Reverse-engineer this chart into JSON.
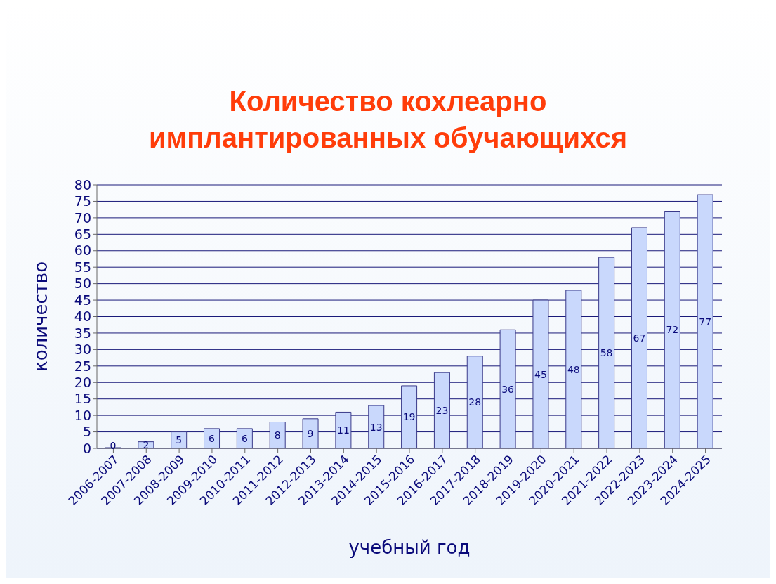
{
  "chart_data": {
    "type": "bar",
    "title": "Количество кохлеарно имплантированных обучающихся",
    "xlabel": "учебный год",
    "ylabel": "количество",
    "categories": [
      "2006-2007",
      "2007-2008",
      "2008-2009",
      "2009-2010",
      "2010-2011",
      "2011-2012",
      "2012-2013",
      "2013-2014",
      "2014-2015",
      "2015-2016",
      "2016-2017",
      "2017-2018",
      "2018-2019",
      "2019-2020",
      "2020-2021",
      "2021-2022",
      "2022-2023",
      "2023-2024",
      "2024-2025"
    ],
    "values": [
      0,
      2,
      5,
      6,
      6,
      8,
      9,
      11,
      13,
      19,
      23,
      28,
      36,
      45,
      48,
      58,
      67,
      72,
      77
    ],
    "color": "#c9d8fc",
    "ylim": [
      0,
      80
    ],
    "yticks": [
      0,
      5,
      10,
      15,
      20,
      25,
      30,
      35,
      40,
      45,
      50,
      55,
      60,
      65,
      70,
      75,
      80
    ],
    "grid": "y",
    "data_labels": true
  }
}
